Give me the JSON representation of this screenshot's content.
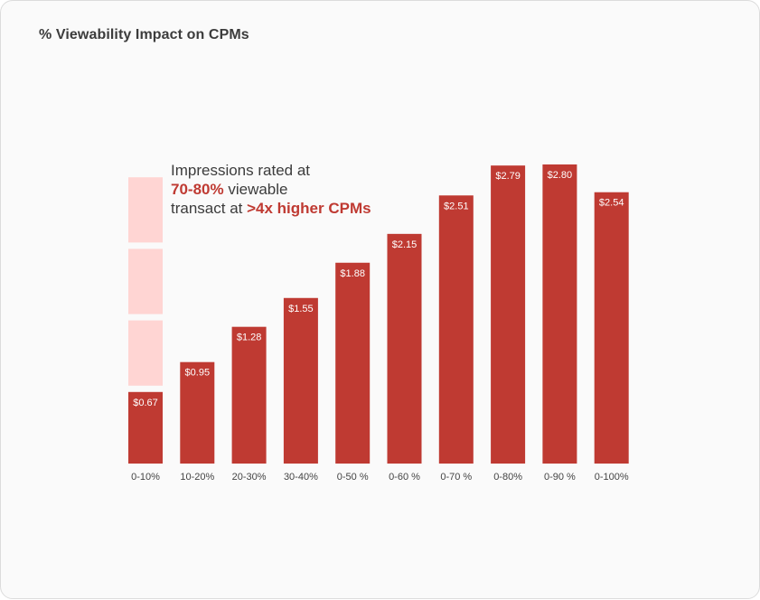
{
  "title": "% Viewability Impact on CPMs",
  "annotation": {
    "line1": "Impressions rated at",
    "line2_highlight": "70-80%",
    "line2_rest": "viewable",
    "line3_prefix": "transact at",
    "line3_highlight": ">4x higher CPMs"
  },
  "colors": {
    "bar": "#bf3a32",
    "ghost": "#ffd5d3",
    "accent": "#bf3a32"
  },
  "chart_data": {
    "type": "bar",
    "title": "% Viewability Impact on CPMs",
    "categories": [
      "0-10%",
      "10-20%",
      "20-30%",
      "30-40%",
      "0-50 %",
      "0-60 %",
      "0-70 %",
      "0-80%",
      "0-90 %",
      "0-100%"
    ],
    "values": [
      0.67,
      0.95,
      1.28,
      1.55,
      1.88,
      2.15,
      2.51,
      2.79,
      2.8,
      2.54
    ],
    "value_labels": [
      "$0.67",
      "$0.95",
      "$1.28",
      "$1.55",
      "$1.88",
      "$2.15",
      "$2.51",
      "$2.79",
      "$2.80",
      "$2.54"
    ],
    "ghost_multiple": 4,
    "xlabel": "",
    "ylabel": "",
    "ylim": [
      0,
      2.8
    ],
    "grid": false,
    "legend": "none"
  }
}
